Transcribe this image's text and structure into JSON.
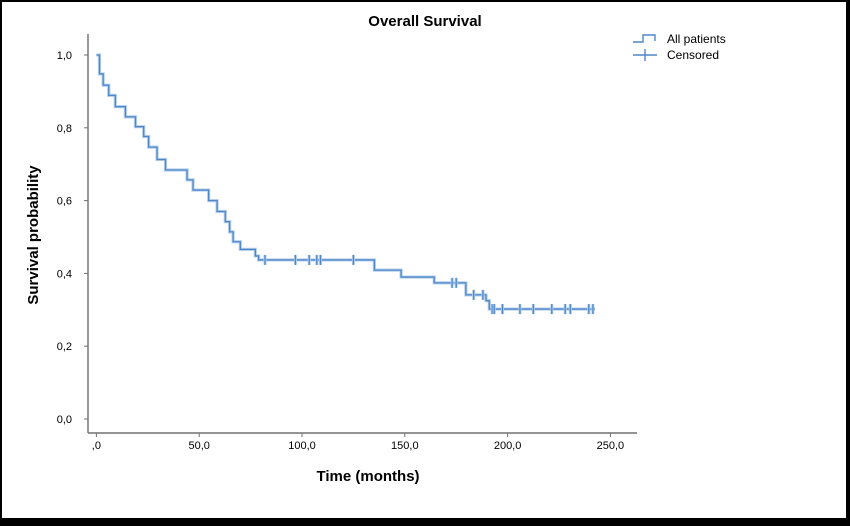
{
  "window": {
    "background": "#ffffff",
    "frame_color": "#000000"
  },
  "chart": {
    "title": "Overall Survival",
    "x_axis_title": "Time (months)",
    "y_axis_title": "Survival probability",
    "legend": [
      {
        "label": "All patients",
        "icon": "step-line-icon"
      },
      {
        "label": "Censored",
        "icon": "censored-plus-icon"
      }
    ],
    "colors": {
      "series": "#4f86c9",
      "series_halo": "#b4d0ec",
      "axis": "#707070",
      "text": "#000000"
    }
  },
  "chart_data": {
    "type": "line",
    "subtype": "kaplan-meier-step-function",
    "title": "Overall Survival",
    "xlabel": "Time (months)",
    "ylabel": "Survival probability",
    "xlim": [
      0,
      263
    ],
    "ylim": [
      0,
      1.06
    ],
    "grid": false,
    "legend_position": "top-right",
    "x_ticks": [
      {
        "value": 0,
        "label": ",0"
      },
      {
        "value": 50,
        "label": "50,0"
      },
      {
        "value": 100,
        "label": "100,0"
      },
      {
        "value": 150,
        "label": "150,0"
      },
      {
        "value": 200,
        "label": "200,0"
      },
      {
        "value": 250,
        "label": "250,0"
      }
    ],
    "y_ticks": [
      {
        "value": 0.0,
        "label": "0,0"
      },
      {
        "value": 0.2,
        "label": "0,2"
      },
      {
        "value": 0.4,
        "label": "0,4"
      },
      {
        "value": 0.6,
        "label": "0,6"
      },
      {
        "value": 0.8,
        "label": "0,8"
      },
      {
        "value": 1.0,
        "label": "1,0"
      }
    ],
    "series": [
      {
        "name": "All patients",
        "steps": [
          [
            0,
            1.0
          ],
          [
            1.5,
            0.948
          ],
          [
            3.3,
            0.917
          ],
          [
            6.0,
            0.889
          ],
          [
            9.2,
            0.858
          ],
          [
            14.1,
            0.83
          ],
          [
            19.0,
            0.803
          ],
          [
            23.0,
            0.776
          ],
          [
            25.4,
            0.747
          ],
          [
            29.5,
            0.713
          ],
          [
            33.6,
            0.684
          ],
          [
            44.1,
            0.657
          ],
          [
            47.0,
            0.629
          ],
          [
            54.6,
            0.6
          ],
          [
            58.7,
            0.57
          ],
          [
            62.7,
            0.542
          ],
          [
            64.8,
            0.514
          ],
          [
            66.5,
            0.487
          ],
          [
            70.0,
            0.466
          ],
          [
            77.3,
            0.448
          ],
          [
            78.9,
            0.437
          ],
          [
            135.2,
            0.409
          ],
          [
            148.2,
            0.39
          ],
          [
            164.3,
            0.374
          ],
          [
            179.7,
            0.341
          ],
          [
            189.5,
            0.325
          ],
          [
            191.1,
            0.302
          ]
        ],
        "end_time": 242.5,
        "censored": [
          [
            82.0,
            0.437
          ],
          [
            96.8,
            0.437
          ],
          [
            103.5,
            0.437
          ],
          [
            107.2,
            0.437
          ],
          [
            109.0,
            0.437
          ],
          [
            125.0,
            0.437
          ],
          [
            173.0,
            0.374
          ],
          [
            175.0,
            0.374
          ],
          [
            183.5,
            0.341
          ],
          [
            188.0,
            0.341
          ],
          [
            192.5,
            0.302
          ],
          [
            193.5,
            0.302
          ],
          [
            197.5,
            0.302
          ],
          [
            206.0,
            0.302
          ],
          [
            212.5,
            0.302
          ],
          [
            221.5,
            0.302
          ],
          [
            228.0,
            0.302
          ],
          [
            230.5,
            0.302
          ],
          [
            239.5,
            0.302
          ],
          [
            241.5,
            0.302
          ]
        ]
      }
    ]
  }
}
